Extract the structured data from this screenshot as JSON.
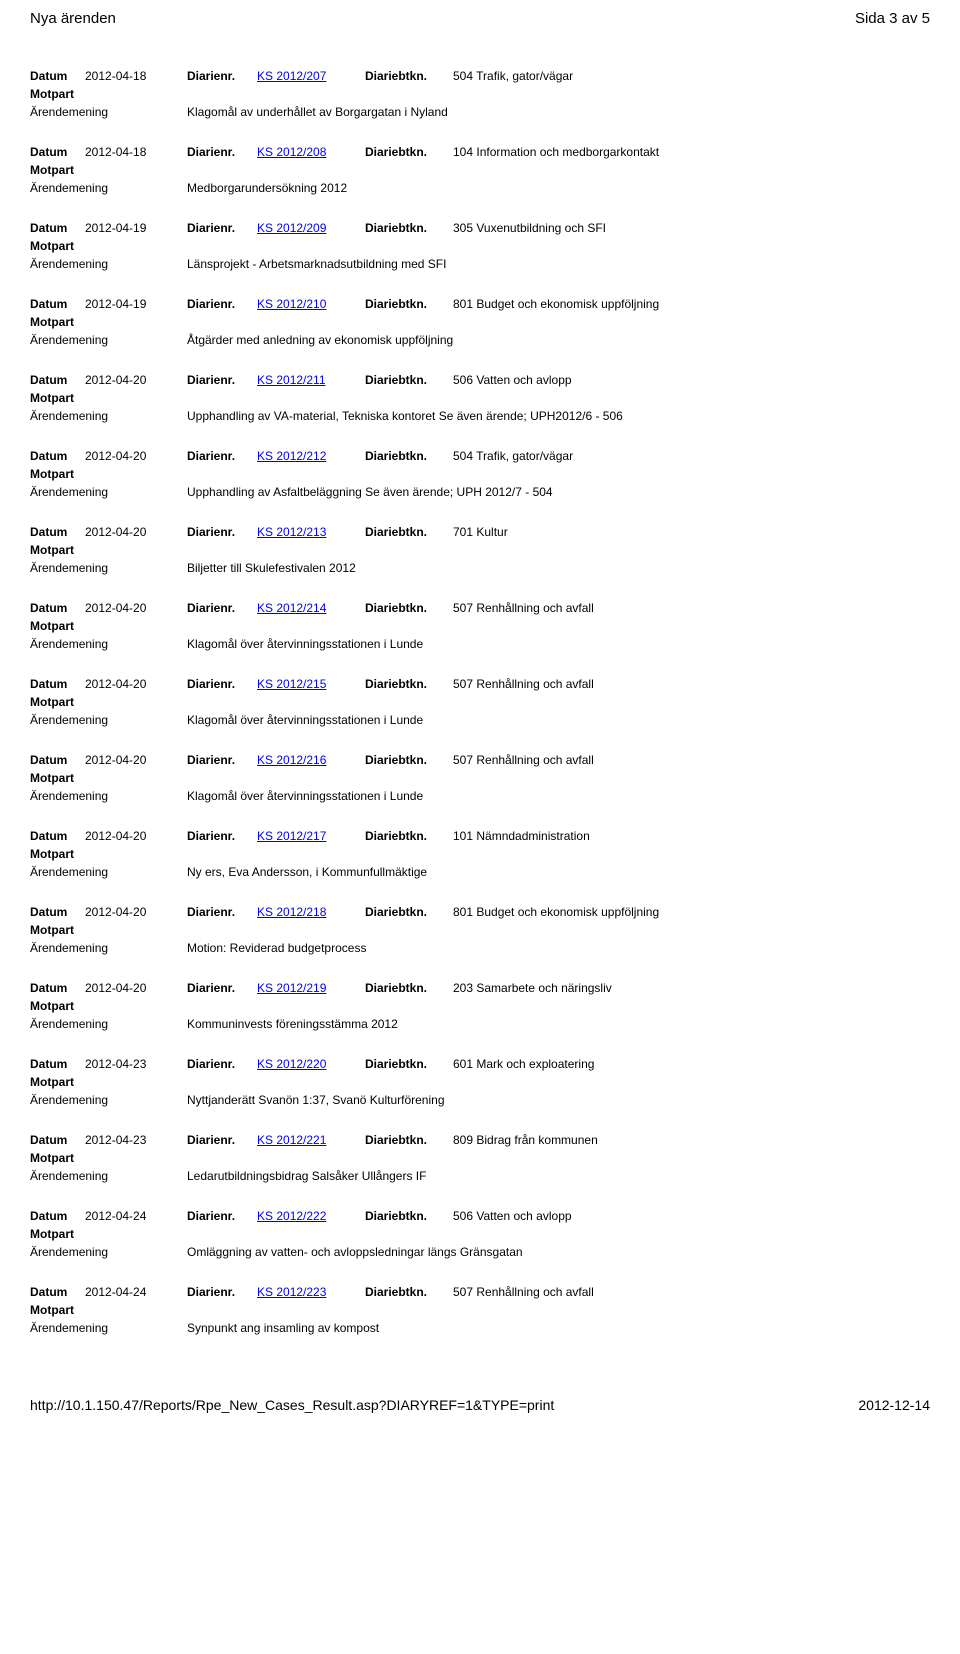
{
  "header": {
    "title": "Nya ärenden",
    "page_info": "Sida 3 av 5"
  },
  "labels": {
    "datum": "Datum",
    "diarienr": "Diarienr.",
    "diariebtkn": "Diariebtkn.",
    "motpart": "Motpart",
    "arendemening": "Ärendemening"
  },
  "footer": {
    "url": "http://10.1.150.47/Reports/Rpe_New_Cases_Result.asp?DIARYREF=1&TYPE=print",
    "date": "2012-12-14"
  },
  "style": {
    "link_color": "#0000ee",
    "text_color": "#000000",
    "background": "#ffffff",
    "font_family": "Verdana, Geneva, sans-serif",
    "base_font_size": 12,
    "header_font_size": 15
  },
  "entries": [
    {
      "datum": "2012-04-18",
      "diarienr": "KS 2012/207",
      "diariebtkn": "504 Trafik, gator/vägar",
      "motpart": "",
      "arendemening": "Klagomål av underhållet av Borgargatan i Nyland"
    },
    {
      "datum": "2012-04-18",
      "diarienr": "KS 2012/208",
      "diariebtkn": "104 Information och medborgarkontakt",
      "motpart": "",
      "arendemening": "Medborgarundersökning 2012"
    },
    {
      "datum": "2012-04-19",
      "diarienr": "KS 2012/209",
      "diariebtkn": "305 Vuxenutbildning och SFI",
      "motpart": "",
      "arendemening": "Länsprojekt - Arbetsmarknadsutbildning med SFI"
    },
    {
      "datum": "2012-04-19",
      "diarienr": "KS 2012/210",
      "diariebtkn": "801 Budget och ekonomisk uppföljning",
      "motpart": "",
      "arendemening": "Åtgärder med anledning av ekonomisk uppföljning"
    },
    {
      "datum": "2012-04-20",
      "diarienr": "KS 2012/211",
      "diariebtkn": "506 Vatten och avlopp",
      "motpart": "",
      "arendemening": "Upphandling av VA-material, Tekniska kontoret Se även ärende; UPH2012/6 - 506"
    },
    {
      "datum": "2012-04-20",
      "diarienr": "KS 2012/212",
      "diariebtkn": "504 Trafik, gator/vägar",
      "motpart": "",
      "arendemening": "Upphandling av Asfaltbeläggning Se även ärende; UPH 2012/7 - 504"
    },
    {
      "datum": "2012-04-20",
      "diarienr": "KS 2012/213",
      "diariebtkn": "701 Kultur",
      "motpart": "",
      "arendemening": "Biljetter till Skulefestivalen 2012"
    },
    {
      "datum": "2012-04-20",
      "diarienr": "KS 2012/214",
      "diariebtkn": "507 Renhållning och avfall",
      "motpart": "",
      "arendemening": "Klagomål över återvinningsstationen i Lunde"
    },
    {
      "datum": "2012-04-20",
      "diarienr": "KS 2012/215",
      "diariebtkn": "507 Renhållning och avfall",
      "motpart": "",
      "arendemening": "Klagomål över återvinningsstationen i Lunde"
    },
    {
      "datum": "2012-04-20",
      "diarienr": "KS 2012/216",
      "diariebtkn": "507 Renhållning och avfall",
      "motpart": "",
      "arendemening": "Klagomål över återvinningsstationen i Lunde"
    },
    {
      "datum": "2012-04-20",
      "diarienr": "KS 2012/217",
      "diariebtkn": "101 Nämndadministration",
      "motpart": "",
      "arendemening": "Ny ers, Eva Andersson, i Kommunfullmäktige"
    },
    {
      "datum": "2012-04-20",
      "diarienr": "KS 2012/218",
      "diariebtkn": "801 Budget och ekonomisk uppföljning",
      "motpart": "",
      "arendemening": "Motion: Reviderad budgetprocess"
    },
    {
      "datum": "2012-04-20",
      "diarienr": "KS 2012/219",
      "diariebtkn": "203 Samarbete och näringsliv",
      "motpart": "",
      "arendemening": "Kommuninvests föreningsstämma 2012"
    },
    {
      "datum": "2012-04-23",
      "diarienr": "KS 2012/220",
      "diariebtkn": "601 Mark och exploatering",
      "motpart": "",
      "arendemening": "Nyttjanderätt Svanön 1:37, Svanö Kulturförening"
    },
    {
      "datum": "2012-04-23",
      "diarienr": "KS 2012/221",
      "diariebtkn": "809 Bidrag från kommunen",
      "motpart": "",
      "arendemening": "Ledarutbildningsbidrag Salsåker Ullångers IF"
    },
    {
      "datum": "2012-04-24",
      "diarienr": "KS 2012/222",
      "diariebtkn": "506 Vatten och avlopp",
      "motpart": "",
      "arendemening": "Omläggning av vatten- och avloppsledningar längs Gränsgatan"
    },
    {
      "datum": "2012-04-24",
      "diarienr": "KS 2012/223",
      "diariebtkn": "507 Renhållning och avfall",
      "motpart": "",
      "arendemening": "Synpunkt ang insamling av kompost"
    }
  ]
}
